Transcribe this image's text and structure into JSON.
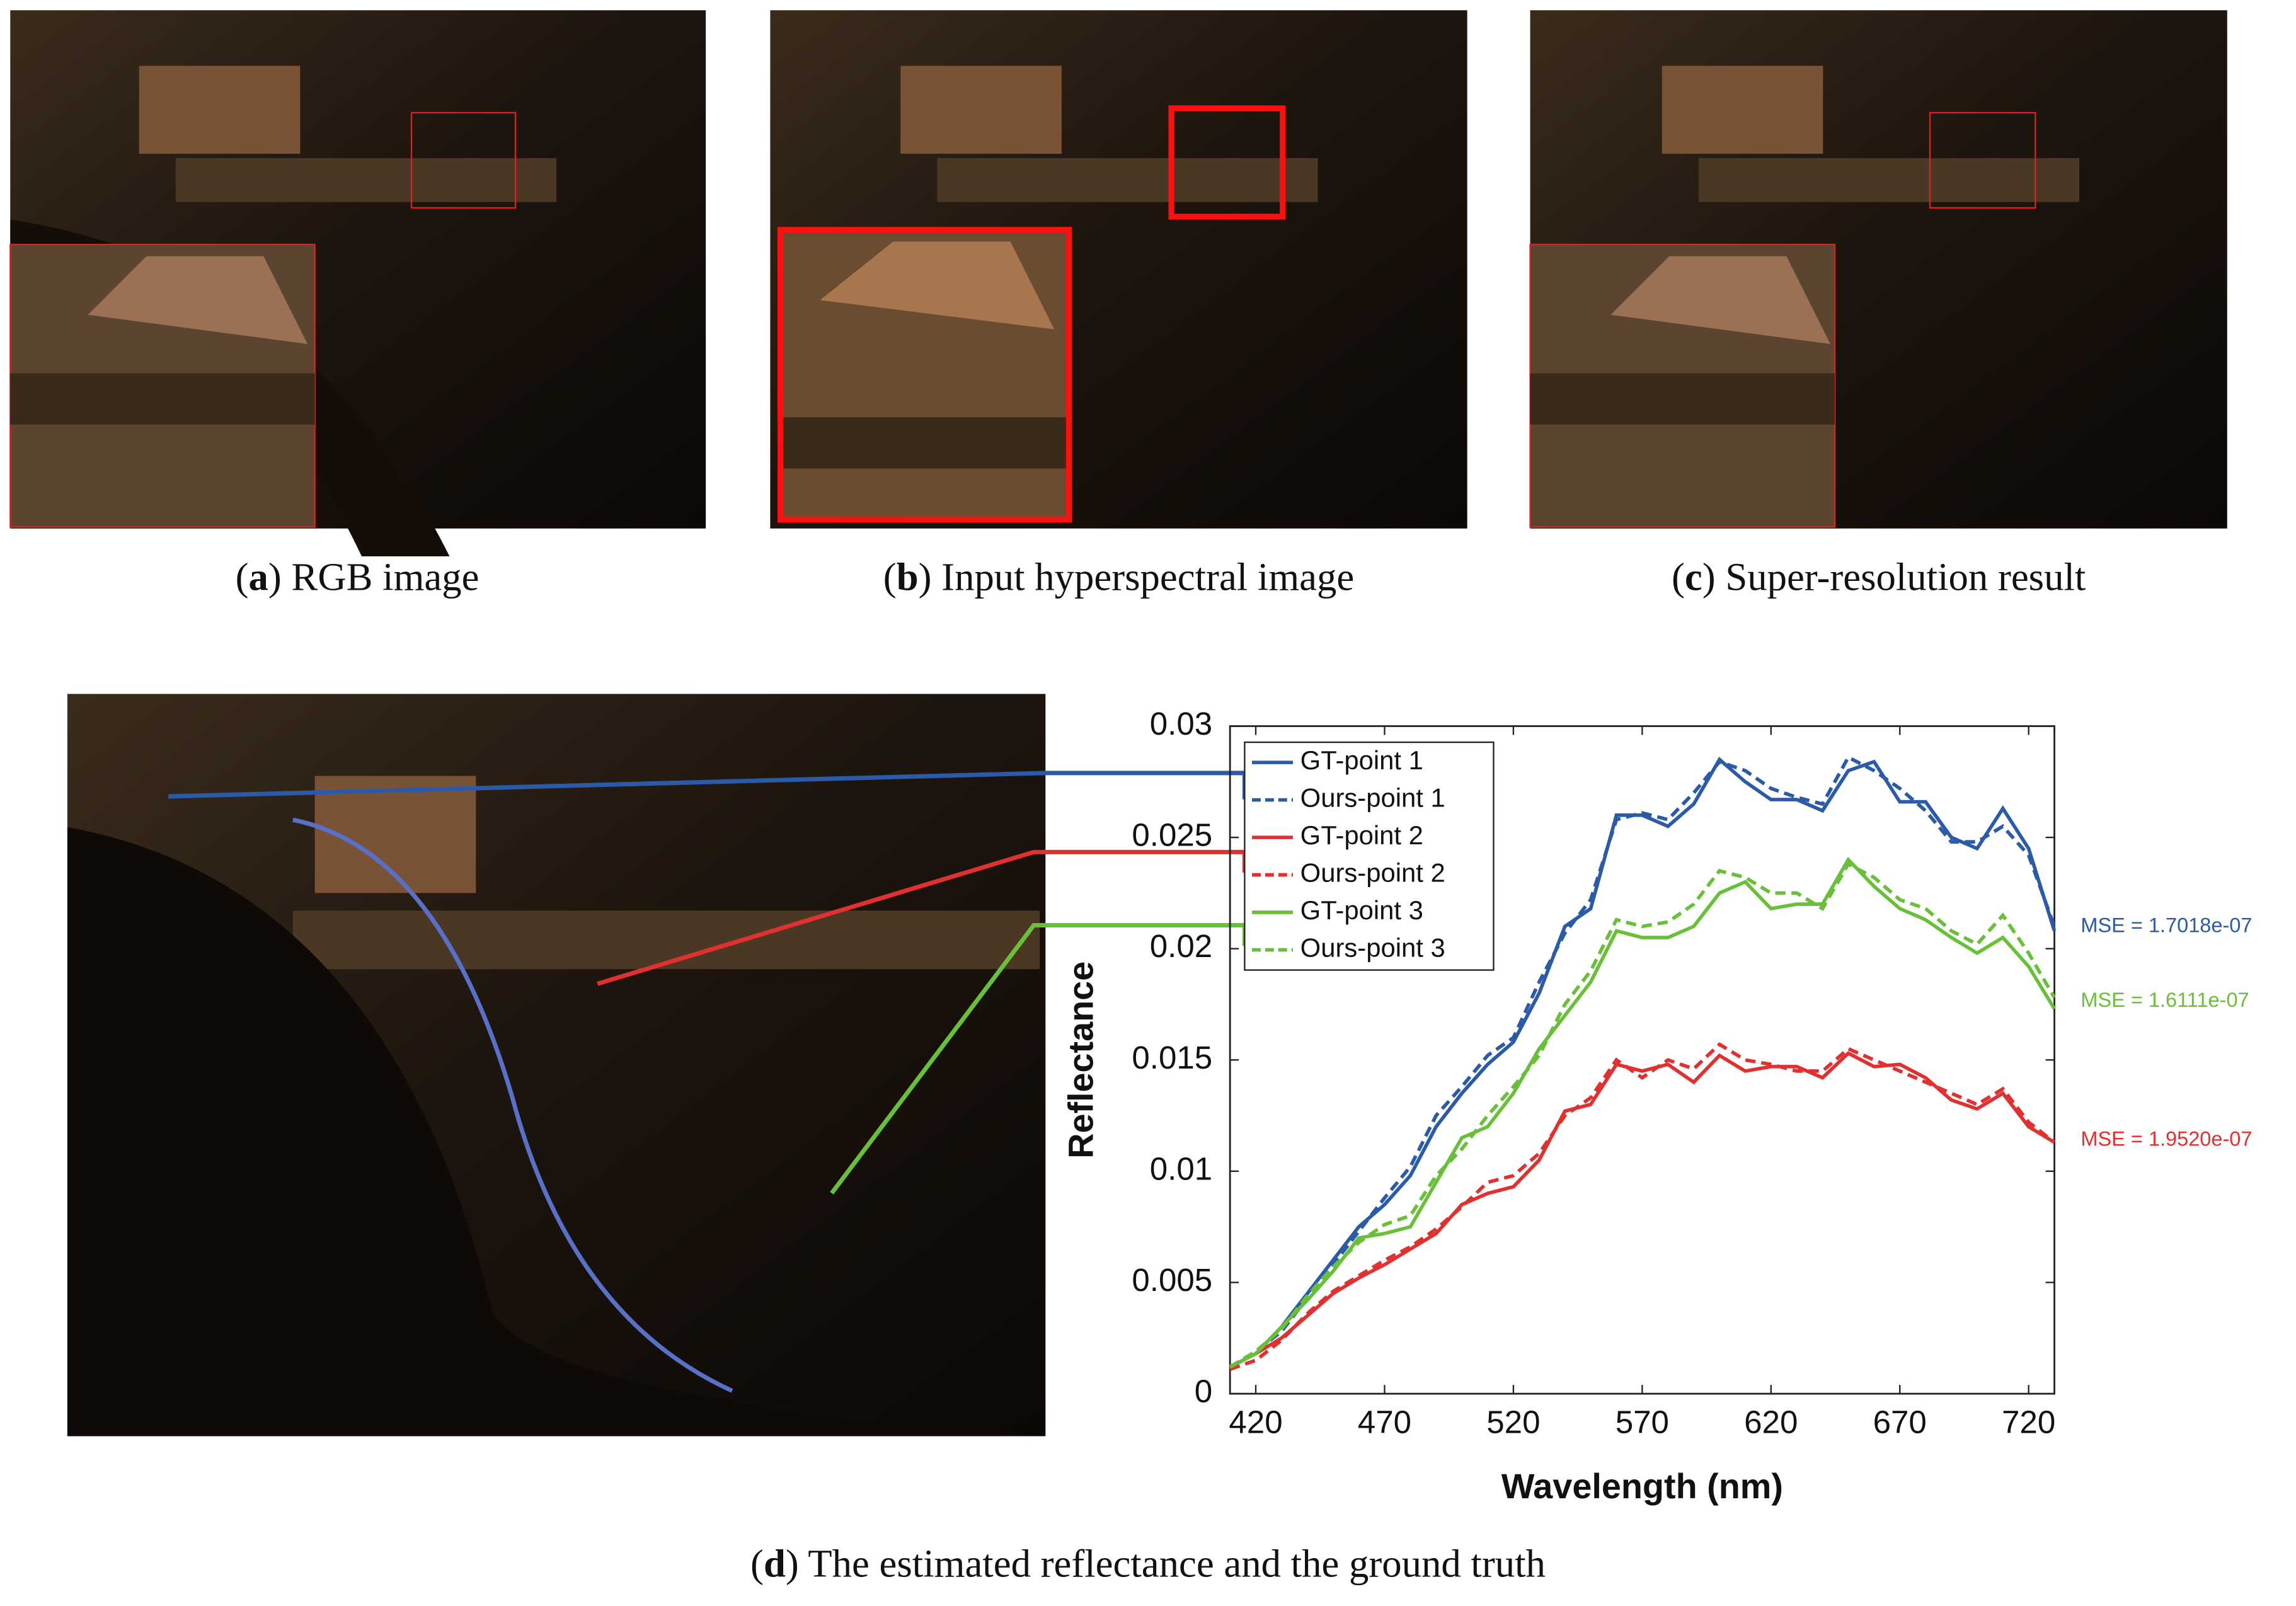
{
  "captions": [
    {
      "parts": [
        "(",
        "a",
        ") RGB image"
      ]
    },
    {
      "parts": [
        "(",
        "b",
        ") Input hyperspectral image"
      ]
    },
    {
      "parts": [
        "(",
        "c",
        ") Super-resolution result"
      ]
    },
    {
      "parts": [
        "(",
        "d",
        ") The estimated reflectance and the ground truth"
      ]
    }
  ],
  "chart_data": {
    "type": "line",
    "xlabel": "Wavelength (nm)",
    "ylabel": "Reflectance",
    "x": [
      410,
      420,
      430,
      440,
      450,
      460,
      470,
      480,
      490,
      500,
      510,
      520,
      530,
      540,
      550,
      560,
      570,
      580,
      590,
      600,
      610,
      620,
      630,
      640,
      650,
      660,
      670,
      680,
      690,
      700,
      710,
      720,
      730
    ],
    "xlim": [
      410,
      730
    ],
    "xticks": [
      420,
      470,
      520,
      570,
      620,
      670,
      720
    ],
    "ylim": [
      0,
      0.03
    ],
    "yticks": [
      0,
      0.005,
      0.01,
      0.015,
      0.02,
      0.025,
      0.03
    ],
    "legend": "upper left",
    "series": [
      {
        "name": "GT-point 1",
        "color": "#2b5aa8",
        "dash": false,
        "values": [
          0.0012,
          0.0018,
          0.003,
          0.0045,
          0.006,
          0.0075,
          0.0085,
          0.0098,
          0.012,
          0.0135,
          0.0148,
          0.0158,
          0.018,
          0.021,
          0.0218,
          0.026,
          0.026,
          0.0255,
          0.0265,
          0.0285,
          0.0275,
          0.0267,
          0.0267,
          0.0262,
          0.028,
          0.0284,
          0.0266,
          0.0266,
          0.025,
          0.0245,
          0.0263,
          0.0245,
          0.0208
        ]
      },
      {
        "name": "Ours-point 1",
        "color": "#2b5aa8",
        "dash": true,
        "values": [
          0.0012,
          0.0019,
          0.0028,
          0.0043,
          0.0058,
          0.0073,
          0.0088,
          0.0102,
          0.0125,
          0.0138,
          0.0152,
          0.016,
          0.0185,
          0.0207,
          0.0222,
          0.0258,
          0.0261,
          0.0258,
          0.027,
          0.0284,
          0.028,
          0.0272,
          0.0268,
          0.0265,
          0.0286,
          0.028,
          0.0272,
          0.0262,
          0.0248,
          0.0248,
          0.0255,
          0.0242,
          0.021
        ]
      },
      {
        "name": "GT-point 2",
        "color": "#e03030",
        "dash": false,
        "values": [
          0.0012,
          0.0018,
          0.0025,
          0.0035,
          0.0045,
          0.0052,
          0.0058,
          0.0065,
          0.0072,
          0.0085,
          0.009,
          0.0093,
          0.0105,
          0.0127,
          0.013,
          0.0148,
          0.0145,
          0.0148,
          0.014,
          0.0152,
          0.0145,
          0.0147,
          0.0147,
          0.0142,
          0.0153,
          0.0147,
          0.0148,
          0.0142,
          0.0132,
          0.0128,
          0.0135,
          0.012,
          0.0113
        ]
      },
      {
        "name": "Ours-point 2",
        "color": "#e03030",
        "dash": true,
        "values": [
          0.0011,
          0.0015,
          0.0024,
          0.0036,
          0.0046,
          0.0053,
          0.006,
          0.0066,
          0.0074,
          0.0084,
          0.0095,
          0.0098,
          0.0108,
          0.0125,
          0.0133,
          0.015,
          0.0142,
          0.015,
          0.0146,
          0.0157,
          0.015,
          0.0148,
          0.0145,
          0.0145,
          0.0155,
          0.015,
          0.0145,
          0.014,
          0.0135,
          0.013,
          0.0137,
          0.0122,
          0.0113
        ]
      },
      {
        "name": "GT-point 3",
        "color": "#6abf3a",
        "dash": false,
        "values": [
          0.0012,
          0.0018,
          0.003,
          0.0042,
          0.0055,
          0.007,
          0.0072,
          0.0075,
          0.0095,
          0.0115,
          0.012,
          0.0135,
          0.0155,
          0.017,
          0.0185,
          0.0208,
          0.0205,
          0.0205,
          0.021,
          0.0225,
          0.023,
          0.0218,
          0.022,
          0.022,
          0.024,
          0.0228,
          0.0218,
          0.0213,
          0.0205,
          0.0198,
          0.0205,
          0.0192,
          0.0173
        ]
      },
      {
        "name": "Ours-point 3",
        "color": "#6abf3a",
        "dash": true,
        "values": [
          0.0012,
          0.0019,
          0.0029,
          0.0044,
          0.0057,
          0.0068,
          0.0076,
          0.008,
          0.0098,
          0.011,
          0.0125,
          0.0138,
          0.0152,
          0.0175,
          0.019,
          0.0213,
          0.021,
          0.0212,
          0.022,
          0.0235,
          0.0232,
          0.0225,
          0.0225,
          0.0218,
          0.0238,
          0.0232,
          0.0222,
          0.0218,
          0.0208,
          0.0202,
          0.0215,
          0.0198,
          0.0178
        ]
      }
    ],
    "annotations": [
      {
        "text": "MSE = 1.7018e-07",
        "color": "#2b5aa8"
      },
      {
        "text": "MSE = 1.6111e-07",
        "color": "#6abf3a"
      },
      {
        "text": "MSE = 1.9520e-07",
        "color": "#e03030"
      }
    ]
  }
}
